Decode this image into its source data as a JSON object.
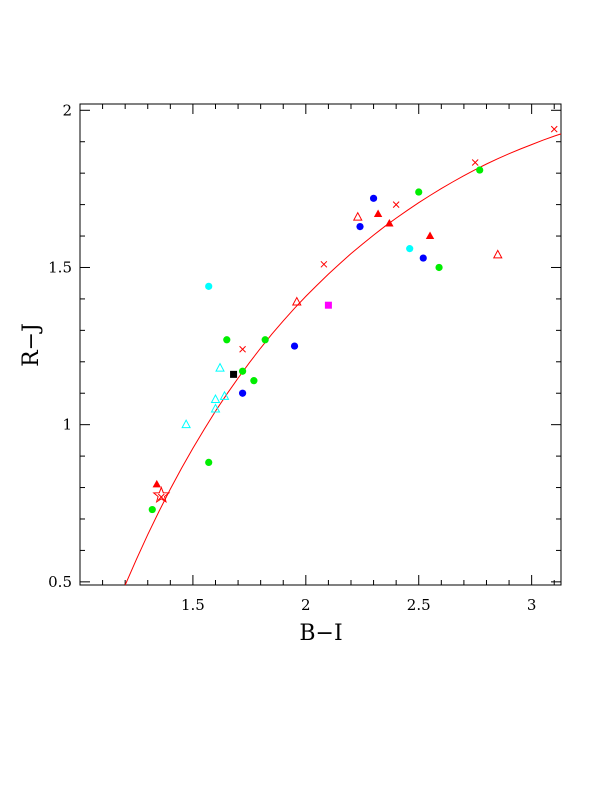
{
  "chart_data": {
    "type": "scatter",
    "xlabel": "B−I",
    "ylabel": "R−J",
    "xlim": [
      1.0,
      3.13
    ],
    "ylim": [
      0.49,
      2.02
    ],
    "x_ticks_major": [
      1.5,
      2,
      2.5,
      3
    ],
    "x_tick_labels": [
      "1.5",
      "2",
      "2.5",
      "3"
    ],
    "y_ticks_major": [
      0.5,
      1,
      1.5,
      2
    ],
    "y_tick_labels": [
      "0.5",
      "1",
      "1.5",
      "2"
    ],
    "grid": false,
    "legend": "none",
    "curve": {
      "color": "#ff0000",
      "x": [
        1.2,
        1.25,
        1.3,
        1.35,
        1.4,
        1.45,
        1.5,
        1.55,
        1.6,
        1.65,
        1.7,
        1.75,
        1.8,
        1.85,
        1.9,
        1.95,
        2.0,
        2.05,
        2.1,
        2.15,
        2.2,
        2.25,
        2.3,
        2.35,
        2.4,
        2.45,
        2.5,
        2.55,
        2.6,
        2.65,
        2.7,
        2.75,
        2.8,
        2.85,
        2.9,
        2.95,
        3.0,
        3.05,
        3.1,
        3.13
      ],
      "y": [
        0.49,
        0.572,
        0.65,
        0.724,
        0.795,
        0.862,
        0.925,
        0.985,
        1.043,
        1.097,
        1.148,
        1.197,
        1.244,
        1.288,
        1.33,
        1.37,
        1.408,
        1.444,
        1.479,
        1.512,
        1.544,
        1.574,
        1.603,
        1.631,
        1.657,
        1.682,
        1.706,
        1.729,
        1.751,
        1.772,
        1.792,
        1.811,
        1.829,
        1.846,
        1.862,
        1.877,
        1.891,
        1.905,
        1.918,
        1.925
      ],
      "cross_markers_x": [
        1.36,
        1.72,
        2.08,
        2.4,
        2.75,
        3.1
      ],
      "cross_markers_y": [
        0.77,
        1.24,
        1.51,
        1.7,
        1.834,
        1.94
      ]
    },
    "series": [
      {
        "marker": "filled-circle",
        "color": "#00ee00",
        "x": [
          1.32,
          1.57,
          1.65,
          1.72,
          1.77,
          1.82,
          2.5,
          2.59,
          2.77
        ],
        "y": [
          0.73,
          0.88,
          1.27,
          1.17,
          1.14,
          1.27,
          1.74,
          1.5,
          1.81
        ]
      },
      {
        "marker": "filled-circle",
        "color": "#0000ff",
        "x": [
          1.72,
          1.95,
          2.24,
          2.3,
          2.52
        ],
        "y": [
          1.1,
          1.25,
          1.63,
          1.72,
          1.53
        ]
      },
      {
        "marker": "filled-circle",
        "color": "#00ffff",
        "x": [
          1.57,
          2.46
        ],
        "y": [
          1.44,
          1.56
        ]
      },
      {
        "marker": "filled-square",
        "color": "#000000",
        "x": [
          1.68
        ],
        "y": [
          1.16
        ]
      },
      {
        "marker": "filled-square",
        "color": "#ff00ff",
        "x": [
          2.1
        ],
        "y": [
          1.38
        ]
      },
      {
        "marker": "filled-triangle",
        "color": "#ff0000",
        "x": [
          1.34,
          2.32,
          2.37,
          2.55
        ],
        "y": [
          0.81,
          1.67,
          1.64,
          1.6
        ]
      },
      {
        "marker": "open-triangle",
        "color": "#ff0000",
        "x": [
          1.96,
          2.23,
          2.85
        ],
        "y": [
          1.39,
          1.66,
          1.54
        ]
      },
      {
        "marker": "open-triangle",
        "color": "#00ffff",
        "x": [
          1.47,
          1.6,
          1.6,
          1.62,
          1.64
        ],
        "y": [
          1.0,
          1.08,
          1.05,
          1.18,
          1.09
        ]
      },
      {
        "marker": "open-star",
        "color": "#ff0000",
        "x": [
          1.36
        ],
        "y": [
          0.775
        ]
      }
    ]
  }
}
